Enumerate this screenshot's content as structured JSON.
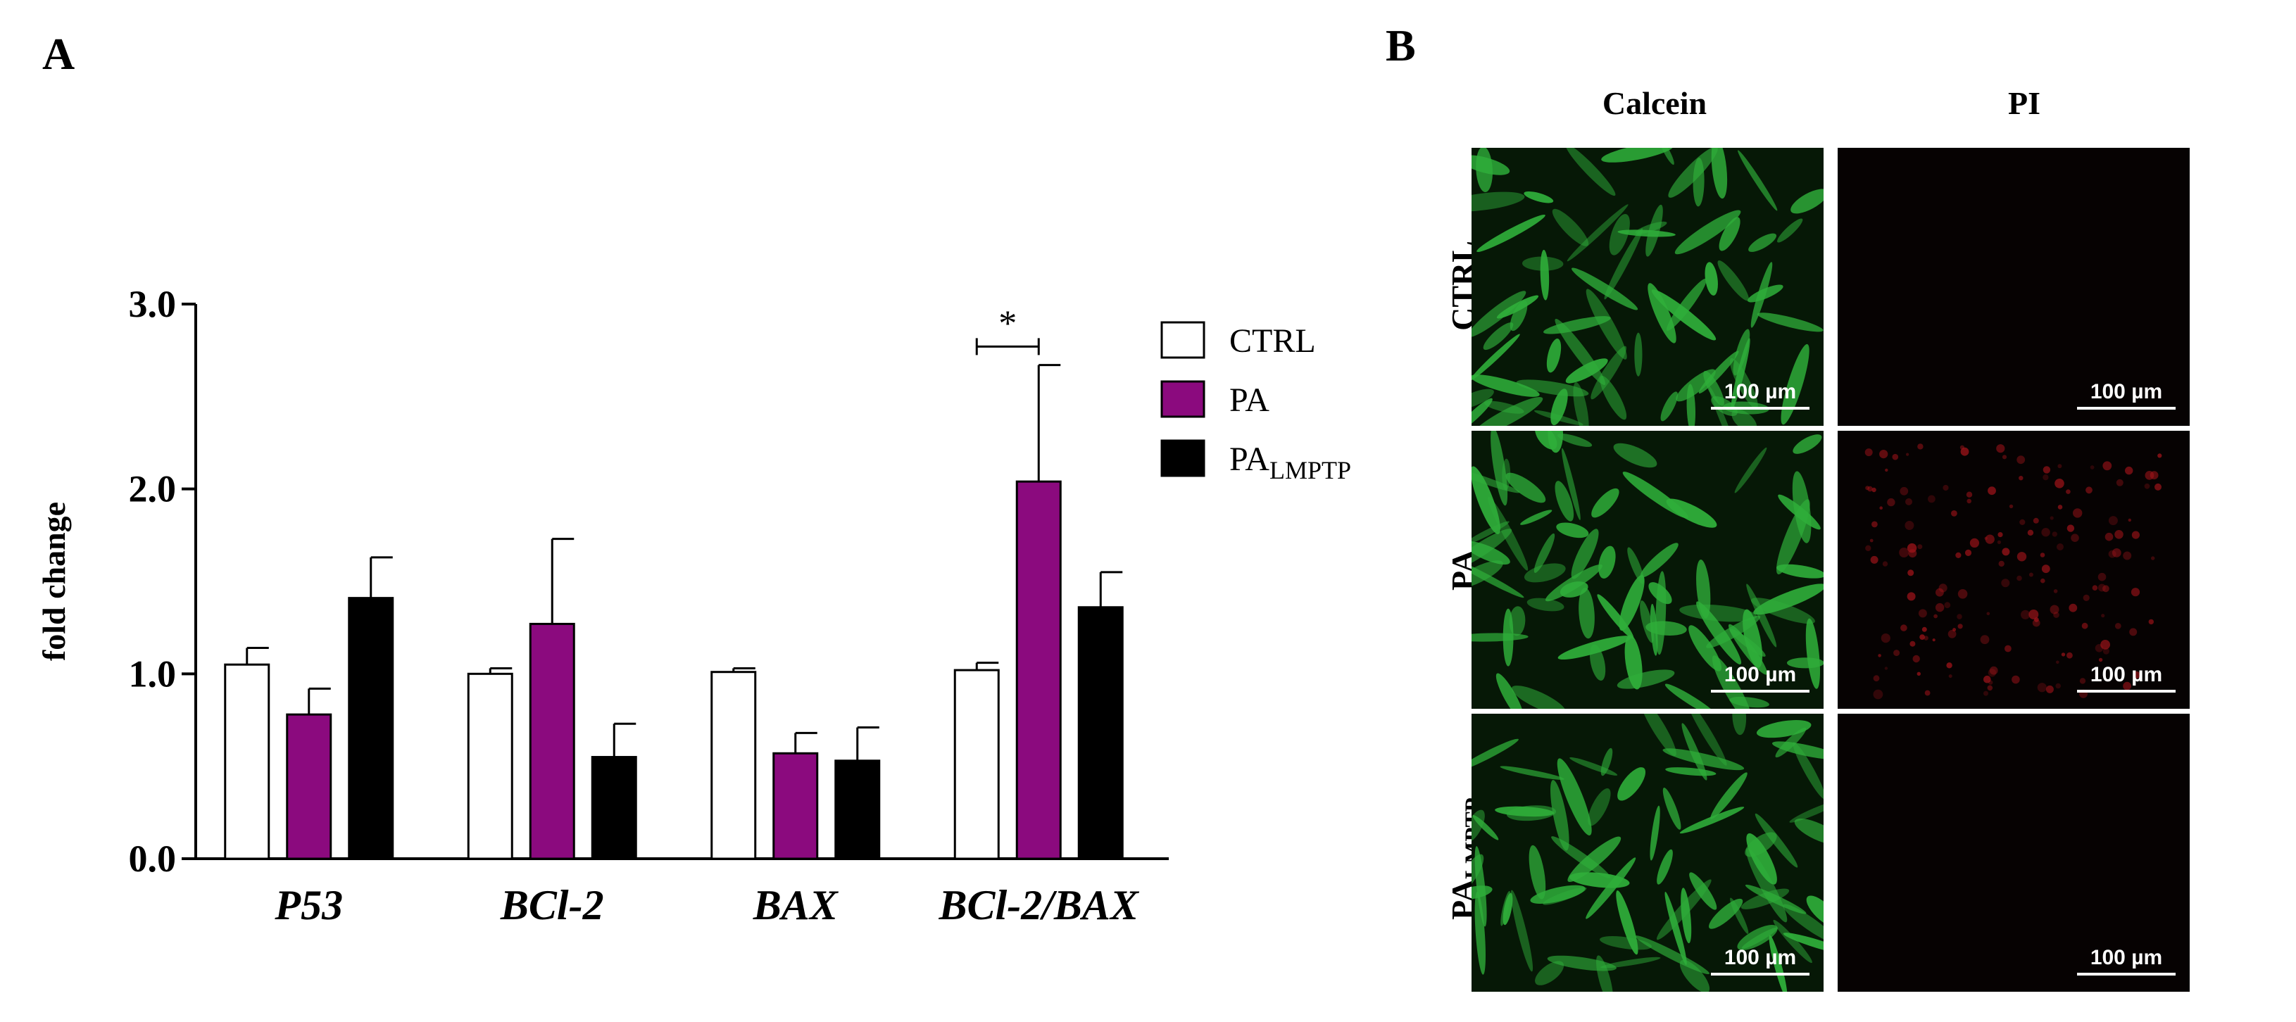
{
  "panels": {
    "a_letter": "A",
    "b_letter": "B"
  },
  "chart_data": {
    "type": "bar",
    "title": "",
    "xlabel": "",
    "ylabel": "fold change",
    "ylim": [
      0,
      3.0
    ],
    "yticks": [
      "0.0",
      "1.0",
      "2.0",
      "3.0"
    ],
    "categories": [
      "P53",
      "BCl-2",
      "BAX",
      "BCl-2/BAX"
    ],
    "series": [
      {
        "name": "CTRL",
        "color": "#ffffff",
        "values": [
          1.05,
          1.0,
          1.01,
          1.02
        ],
        "errors": [
          0.09,
          0.03,
          0.02,
          0.04
        ]
      },
      {
        "name": "PA",
        "color": "#8b0a7e",
        "values": [
          0.78,
          1.27,
          0.57,
          2.04
        ],
        "errors": [
          0.14,
          0.46,
          0.11,
          0.63
        ]
      },
      {
        "name": "PA",
        "subscript": "LMPTP",
        "color": "#000000",
        "values": [
          1.41,
          0.55,
          0.53,
          1.36
        ],
        "errors": [
          0.22,
          0.18,
          0.18,
          0.19
        ]
      }
    ],
    "annotations": [
      {
        "text": "*",
        "category": "BCl-2/BAX",
        "between": [
          "CTRL",
          "PA"
        ]
      }
    ],
    "legend": "right"
  },
  "microscopy": {
    "columns": [
      "Calcein",
      "PI"
    ],
    "rows": [
      {
        "label": "CTRL",
        "subscript": ""
      },
      {
        "label": "PA",
        "subscript": ""
      },
      {
        "label": "PA",
        "subscript": "LMPTP"
      }
    ],
    "scale_bar": "100 µm",
    "colors": {
      "calcein": "#2fae3a",
      "pi_background": "#060202",
      "pi_signal": "#a0141a"
    }
  }
}
